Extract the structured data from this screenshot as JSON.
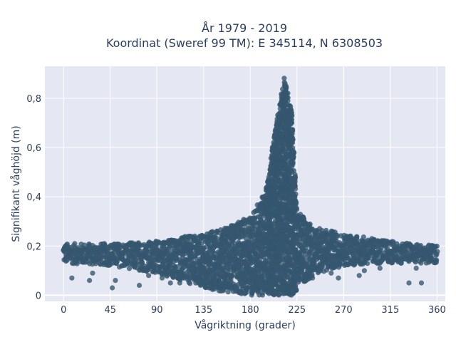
{
  "chart_data": {
    "type": "scatter",
    "title_line1": "År 1979 - 2019",
    "title_line2": "Koordinat (Sweref 99 TM): E 345114, N 6308503",
    "xlabel": "Vågriktning (grader)",
    "ylabel": "Signifikant våghöjd (m)",
    "xlim": [
      -18,
      368
    ],
    "ylim": [
      -0.025,
      0.93
    ],
    "x_ticks": [
      0,
      45,
      90,
      135,
      180,
      225,
      270,
      315,
      360
    ],
    "x_tick_labels": [
      "0",
      "45",
      "90",
      "135",
      "180",
      "225",
      "270",
      "315",
      "360"
    ],
    "y_ticks": [
      0,
      0.2,
      0.4,
      0.6,
      0.8
    ],
    "y_tick_labels": [
      "0",
      "0,2",
      "0,4",
      "0,6",
      "0,8"
    ],
    "grid": true,
    "legend": "none",
    "marker_color": "#34566e",
    "plot_bg": "#e5e8f2",
    "envelope": [
      {
        "x": 0,
        "ymin": 0.13,
        "ymax": 0.21
      },
      {
        "x": 45,
        "ymin": 0.12,
        "ymax": 0.21
      },
      {
        "x": 90,
        "ymin": 0.09,
        "ymax": 0.22
      },
      {
        "x": 135,
        "ymin": 0.03,
        "ymax": 0.25
      },
      {
        "x": 160,
        "ymin": 0.01,
        "ymax": 0.28
      },
      {
        "x": 180,
        "ymin": 0.0,
        "ymax": 0.32
      },
      {
        "x": 195,
        "ymin": 0.0,
        "ymax": 0.42
      },
      {
        "x": 205,
        "ymin": 0.0,
        "ymax": 0.7
      },
      {
        "x": 213,
        "ymin": 0.0,
        "ymax": 0.89
      },
      {
        "x": 220,
        "ymin": 0.0,
        "ymax": 0.75
      },
      {
        "x": 225,
        "ymin": 0.02,
        "ymax": 0.35
      },
      {
        "x": 240,
        "ymin": 0.08,
        "ymax": 0.28
      },
      {
        "x": 270,
        "ymin": 0.12,
        "ymax": 0.25
      },
      {
        "x": 315,
        "ymin": 0.13,
        "ymax": 0.22
      },
      {
        "x": 360,
        "ymin": 0.13,
        "ymax": 0.2
      }
    ],
    "outliers": [
      {
        "x": 8,
        "y": 0.07
      },
      {
        "x": 25,
        "y": 0.06
      },
      {
        "x": 28,
        "y": 0.09
      },
      {
        "x": 47,
        "y": 0.03
      },
      {
        "x": 50,
        "y": 0.06
      },
      {
        "x": 73,
        "y": 0.04
      },
      {
        "x": 82,
        "y": 0.08
      },
      {
        "x": 95,
        "y": 0.07
      },
      {
        "x": 103,
        "y": 0.05
      },
      {
        "x": 112,
        "y": 0.05
      },
      {
        "x": 120,
        "y": 0.08
      },
      {
        "x": 128,
        "y": 0.06
      },
      {
        "x": 240,
        "y": 0.07
      },
      {
        "x": 258,
        "y": 0.09
      },
      {
        "x": 265,
        "y": 0.07
      },
      {
        "x": 285,
        "y": 0.08
      },
      {
        "x": 290,
        "y": 0.1
      },
      {
        "x": 305,
        "y": 0.11
      },
      {
        "x": 333,
        "y": 0.05
      },
      {
        "x": 345,
        "y": 0.05
      },
      {
        "x": 150,
        "y": 0.04
      },
      {
        "x": 298,
        "y": 0.16
      },
      {
        "x": 340,
        "y": 0.11
      }
    ]
  }
}
